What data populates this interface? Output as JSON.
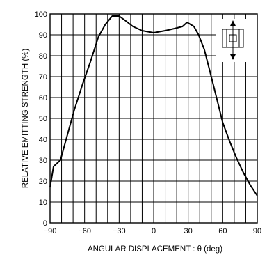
{
  "chart_data": {
    "type": "line",
    "title": "",
    "xlabel": "ANGULAR DISPLACEMENT : θ (deg)",
    "ylabel": "RELATIVE EMITTING STRENGTH (%)",
    "xlim": [
      -90,
      90
    ],
    "ylim": [
      0,
      100
    ],
    "x_ticks": [
      "-90",
      "-60",
      "-30",
      "0",
      "30",
      "60",
      "90"
    ],
    "x_tick_values": [
      -90,
      -60,
      -30,
      0,
      30,
      60,
      90
    ],
    "y_ticks": [
      "0",
      "10",
      "20",
      "30",
      "40",
      "50",
      "60",
      "70",
      "80",
      "90",
      "100"
    ],
    "y_tick_values": [
      0,
      10,
      20,
      30,
      40,
      50,
      60,
      70,
      80,
      90,
      100
    ],
    "x_minor_step": 10,
    "y_minor_step": 10,
    "grid": true,
    "legend": "none",
    "inset_icon": "led-orientation-icon",
    "series": [
      {
        "x": [
          -90,
          -87,
          -81,
          -75,
          -69,
          -62,
          -55,
          -48,
          -42,
          -36,
          -30,
          -25,
          -18,
          -10,
          0,
          10,
          18,
          25,
          29,
          32,
          35,
          39,
          44,
          50,
          55,
          60,
          66,
          72,
          78,
          84,
          90
        ],
        "y": [
          17,
          27,
          30,
          42,
          54,
          66,
          77,
          89,
          95,
          99,
          99,
          97,
          94,
          92,
          91,
          92,
          93,
          94,
          96,
          95,
          94,
          90,
          83,
          70,
          59,
          48,
          39,
          31,
          24,
          18,
          13
        ]
      }
    ]
  }
}
